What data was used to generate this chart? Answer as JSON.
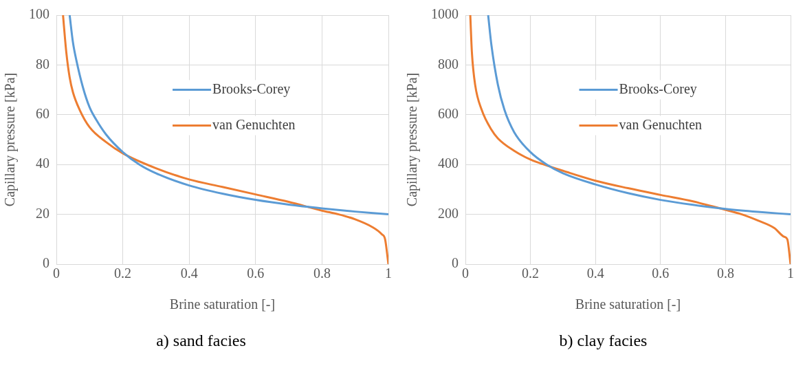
{
  "chart_data": [
    {
      "type": "line",
      "title": "a) sand facies",
      "xlabel": "Brine saturation [-]",
      "ylabel": "Capillary pressure [kPa]",
      "xlim": [
        0,
        1
      ],
      "xticks": [
        0,
        0.2,
        0.4,
        0.6,
        0.8,
        1
      ],
      "ylim": [
        0,
        100
      ],
      "yticks": [
        0,
        20,
        40,
        60,
        80,
        100
      ],
      "grid": true,
      "legend": "right",
      "marker": "none",
      "line_style": "solid",
      "series": [
        {
          "name": "Brooks-Corey",
          "color": "#5b9bd5",
          "x": [
            0.04,
            0.05,
            0.06,
            0.08,
            0.1,
            0.12,
            0.15,
            0.2,
            0.25,
            0.3,
            0.4,
            0.5,
            0.6,
            0.7,
            0.8,
            0.9,
            1
          ],
          "values": [
            100,
            89,
            82,
            71,
            63,
            58,
            52,
            45,
            40,
            36.5,
            31.6,
            28.3,
            25.8,
            23.9,
            22.4,
            21.1,
            20
          ]
        },
        {
          "name": "van Genuchten",
          "color": "#ed7d31",
          "x": [
            0.02,
            0.03,
            0.04,
            0.05,
            0.07,
            0.1,
            0.15,
            0.2,
            0.3,
            0.4,
            0.5,
            0.6,
            0.7,
            0.8,
            0.85,
            0.9,
            0.95,
            0.98,
            0.99,
            1
          ],
          "values": [
            100,
            85,
            75,
            69,
            62,
            55,
            49,
            44.5,
            38.5,
            34,
            31,
            28,
            25,
            21.5,
            20,
            18,
            15,
            12,
            10,
            0
          ]
        }
      ]
    },
    {
      "type": "line",
      "title": "b) clay facies",
      "xlabel": "Brine saturation [-]",
      "ylabel": "Capillary pressure [kPa]",
      "xlim": [
        0,
        1
      ],
      "xticks": [
        0,
        0.2,
        0.4,
        0.6,
        0.8,
        1
      ],
      "ylim": [
        0,
        1000
      ],
      "yticks": [
        0,
        200,
        400,
        600,
        800,
        1000
      ],
      "grid": true,
      "legend": "right",
      "marker": "none",
      "line_style": "solid",
      "series": [
        {
          "name": "Brooks-Corey",
          "color": "#5b9bd5",
          "x": [
            0.07,
            0.08,
            0.1,
            0.12,
            0.15,
            0.2,
            0.25,
            0.3,
            0.4,
            0.5,
            0.6,
            0.7,
            0.8,
            0.9,
            1
          ],
          "values": [
            1000,
            880,
            720,
            620,
            530,
            450,
            400,
            365,
            320,
            285,
            258,
            238,
            222,
            210,
            200
          ]
        },
        {
          "name": "van Genuchten",
          "color": "#ed7d31",
          "x": [
            0.015,
            0.02,
            0.03,
            0.05,
            0.08,
            0.1,
            0.15,
            0.2,
            0.26,
            0.3,
            0.4,
            0.5,
            0.6,
            0.7,
            0.78,
            0.85,
            0.9,
            0.95,
            0.98,
            0.99,
            1
          ],
          "values": [
            1000,
            850,
            720,
            620,
            540,
            505,
            455,
            420,
            392,
            375,
            335,
            305,
            278,
            252,
            225,
            200,
            175,
            145,
            110,
            100,
            0
          ]
        }
      ]
    }
  ]
}
